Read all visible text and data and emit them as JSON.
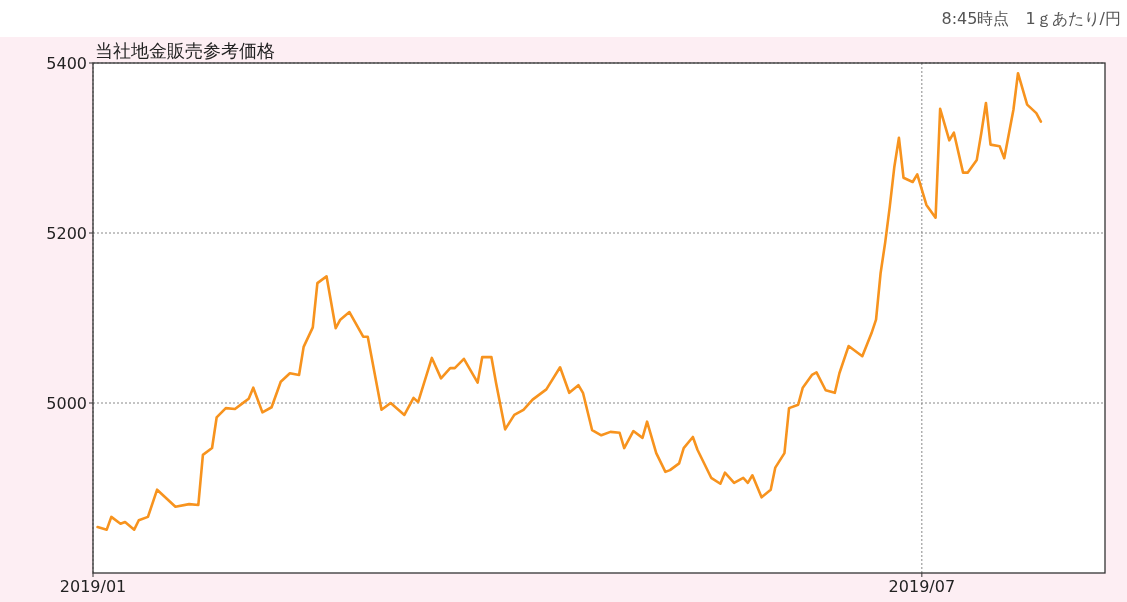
{
  "chart_data": {
    "type": "line",
    "title": "当社地金販売参考価格",
    "annotations": [
      "8:45時点　1ｇあたり/円"
    ],
    "x": [
      "2019-01-02",
      "2019-01-04",
      "2019-01-05",
      "2019-01-07",
      "2019-01-08",
      "2019-01-10",
      "2019-01-11",
      "2019-01-13",
      "2019-01-15",
      "2019-01-17",
      "2019-01-19",
      "2019-01-22",
      "2019-01-24",
      "2019-01-25",
      "2019-01-27",
      "2019-01-28",
      "2019-01-30",
      "2019-02-01",
      "2019-02-03",
      "2019-02-04",
      "2019-02-05",
      "2019-02-07",
      "2019-02-09",
      "2019-02-11",
      "2019-02-13",
      "2019-02-15",
      "2019-02-16",
      "2019-02-18",
      "2019-02-19",
      "2019-02-21",
      "2019-02-23",
      "2019-02-24",
      "2019-02-26",
      "2019-03-01",
      "2019-03-02",
      "2019-03-05",
      "2019-03-07",
      "2019-03-10",
      "2019-03-12",
      "2019-03-13",
      "2019-03-16",
      "2019-03-18",
      "2019-03-20",
      "2019-03-21",
      "2019-03-23",
      "2019-03-26",
      "2019-03-27",
      "2019-03-29",
      "2019-03-30",
      "2019-04-01",
      "2019-04-03",
      "2019-04-05",
      "2019-04-07",
      "2019-04-10",
      "2019-04-13",
      "2019-04-15",
      "2019-04-17",
      "2019-04-18",
      "2019-04-20",
      "2019-04-22",
      "2019-04-24",
      "2019-04-26",
      "2019-04-27",
      "2019-04-29",
      "2019-05-01",
      "2019-05-02",
      "2019-05-04",
      "2019-05-06",
      "2019-05-07",
      "2019-05-09",
      "2019-05-10",
      "2019-05-12",
      "2019-05-13",
      "2019-05-16",
      "2019-05-18",
      "2019-05-19",
      "2019-05-21",
      "2019-05-23",
      "2019-05-24",
      "2019-05-25",
      "2019-05-27",
      "2019-05-29",
      "2019-05-30",
      "2019-06-01",
      "2019-06-02",
      "2019-06-04",
      "2019-06-05",
      "2019-06-07",
      "2019-06-08",
      "2019-06-10",
      "2019-06-12",
      "2019-06-13",
      "2019-06-15",
      "2019-06-18",
      "2019-06-20",
      "2019-06-21",
      "2019-06-22",
      "2019-06-23",
      "2019-06-24",
      "2019-06-25",
      "2019-06-26",
      "2019-06-27",
      "2019-06-29",
      "2019-06-30",
      "2019-07-02",
      "2019-07-04",
      "2019-07-05",
      "2019-07-07",
      "2019-07-08",
      "2019-07-10",
      "2019-07-11",
      "2019-07-13",
      "2019-07-14",
      "2019-07-15",
      "2019-07-16",
      "2019-07-18",
      "2019-07-19",
      "2019-07-21",
      "2019-07-22",
      "2019-07-24",
      "2019-07-26",
      "2019-07-27"
    ],
    "values": [
      4854,
      4851,
      4866,
      4858,
      4860,
      4851,
      4862,
      4866,
      4898,
      4888,
      4878,
      4881,
      4880,
      4939,
      4947,
      4983,
      4994,
      4993,
      5001,
      5005,
      5018,
      4989,
      4995,
      5025,
      5035,
      5033,
      5066,
      5089,
      5141,
      5149,
      5088,
      5098,
      5107,
      5078,
      5078,
      4992,
      5000,
      4986,
      5006,
      5001,
      5053,
      5029,
      5041,
      5041,
      5052,
      5024,
      5054,
      5054,
      5024,
      4969,
      4986,
      4992,
      5004,
      5016,
      5042,
      5012,
      5021,
      5012,
      4968,
      4962,
      4966,
      4965,
      4947,
      4967,
      4959,
      4978,
      4941,
      4919,
      4921,
      4929,
      4947,
      4960,
      4945,
      4912,
      4905,
      4918,
      4906,
      4912,
      4906,
      4915,
      4889,
      4898,
      4924,
      4941,
      4994,
      4998,
      5018,
      5033,
      5036,
      5015,
      5012,
      5035,
      5067,
      5055,
      5082,
      5098,
      5153,
      5189,
      5231,
      5278,
      5312,
      5265,
      5260,
      5269,
      5233,
      5218,
      5346,
      5309,
      5318,
      5271,
      5271,
      5286,
      5318,
      5353,
      5304,
      5302,
      5288,
      5345,
      5388,
      5351,
      5341,
      5331
    ],
    "color": "#f7931e",
    "xlim": [
      "2019-01-01",
      "2019-08-10"
    ],
    "xticks": [
      {
        "value": "2019-01-01",
        "label": "2019/01"
      },
      {
        "value": "2019-07-01",
        "label": "2019/07"
      }
    ],
    "ylim": [
      4800,
      5400
    ],
    "yticks": [
      5000,
      5200,
      5400
    ],
    "grid": true
  }
}
